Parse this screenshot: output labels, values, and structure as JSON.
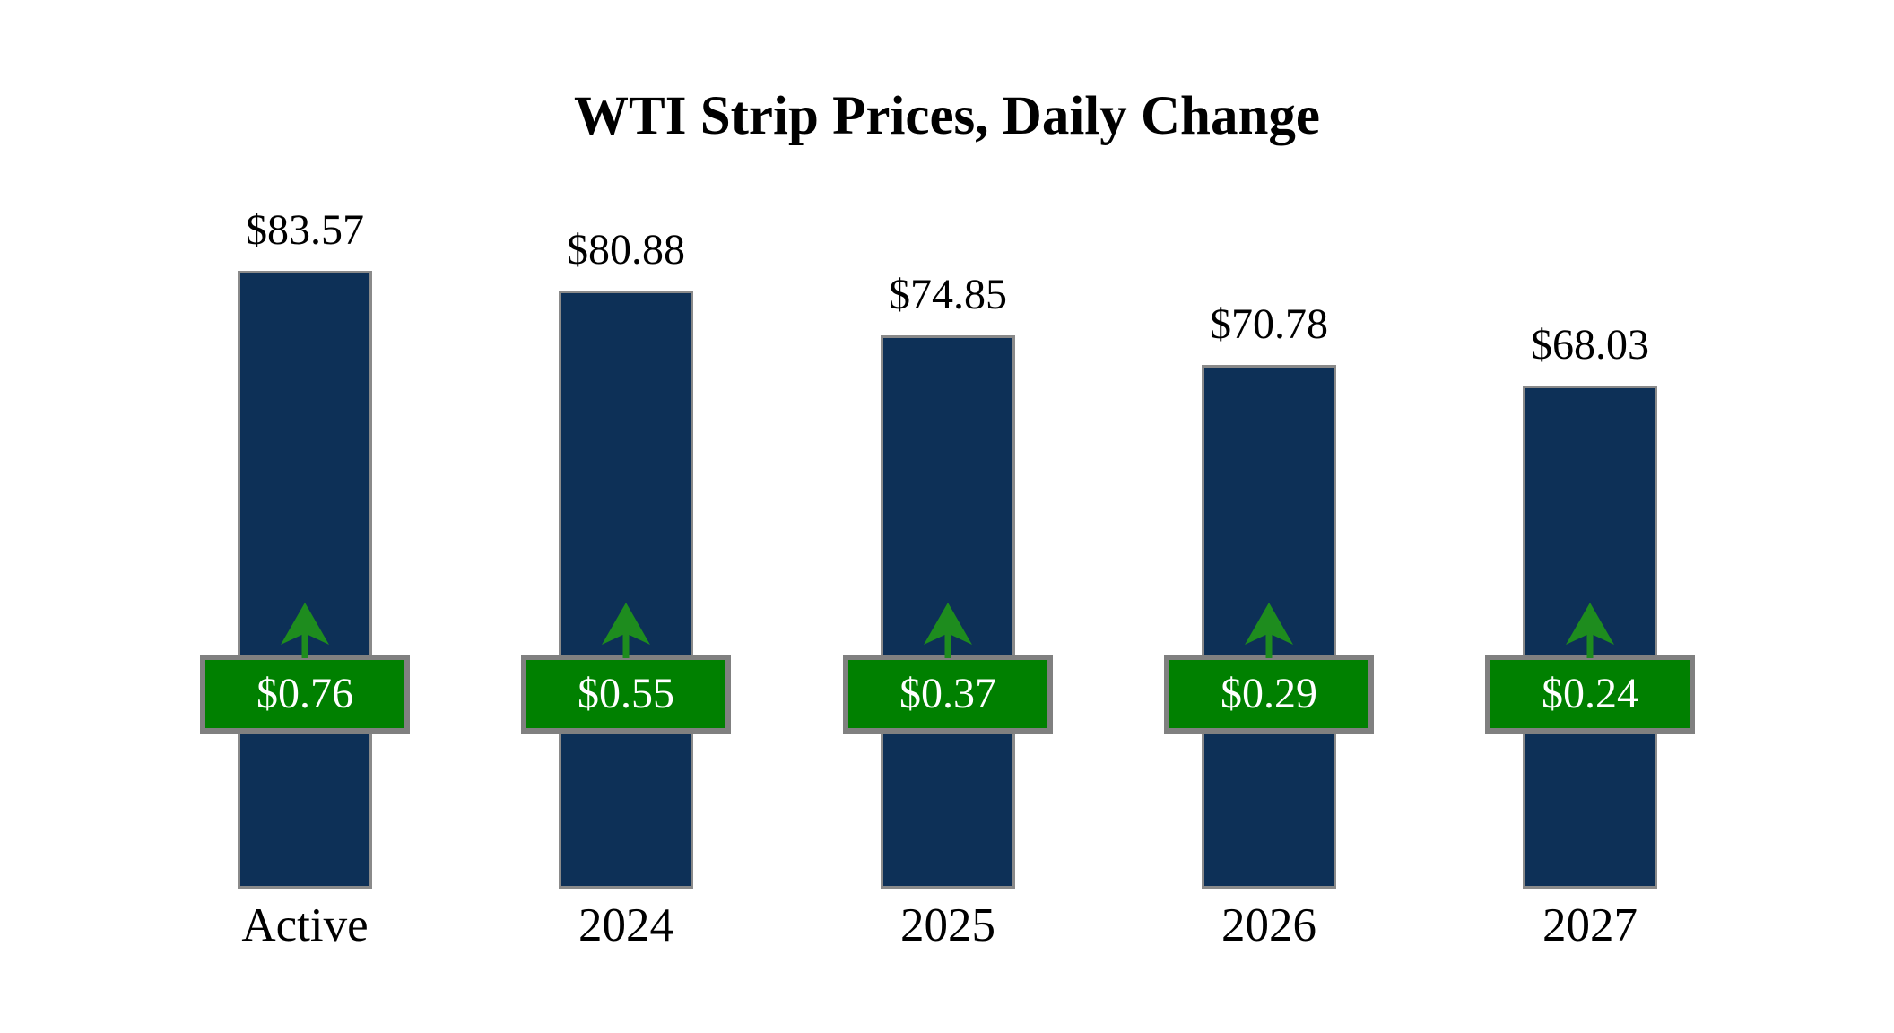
{
  "title": "WTI Strip Prices, Daily Change",
  "chart_data": {
    "type": "bar",
    "title": "WTI Strip Prices, Daily Change",
    "categories": [
      "Active",
      "2024",
      "2025",
      "2026",
      "2027"
    ],
    "series": [
      {
        "name": "Strip Price",
        "values": [
          83.57,
          80.88,
          74.85,
          70.78,
          68.03
        ],
        "labels": [
          "$83.57",
          "$80.88",
          "$74.85",
          "$70.78",
          "$68.03"
        ]
      },
      {
        "name": "Daily Change",
        "values": [
          0.76,
          0.55,
          0.37,
          0.29,
          0.24
        ],
        "labels": [
          "$0.76",
          "$0.55",
          "$0.37",
          "$0.29",
          "$0.24"
        ],
        "direction": "up"
      }
    ],
    "xlabel": "",
    "ylabel": "",
    "ylim": [
      0,
      101
    ],
    "grid": false,
    "legend": "none",
    "axes_hidden": true,
    "colors": {
      "background": "#ffffff",
      "bar": "#0d3057",
      "bar_border": "#8a8a8a",
      "badge": "#008000",
      "badge_border": "#808080",
      "badge_text": "#ffffff",
      "arrow": "#1e8c1e",
      "text": "#000000"
    }
  }
}
